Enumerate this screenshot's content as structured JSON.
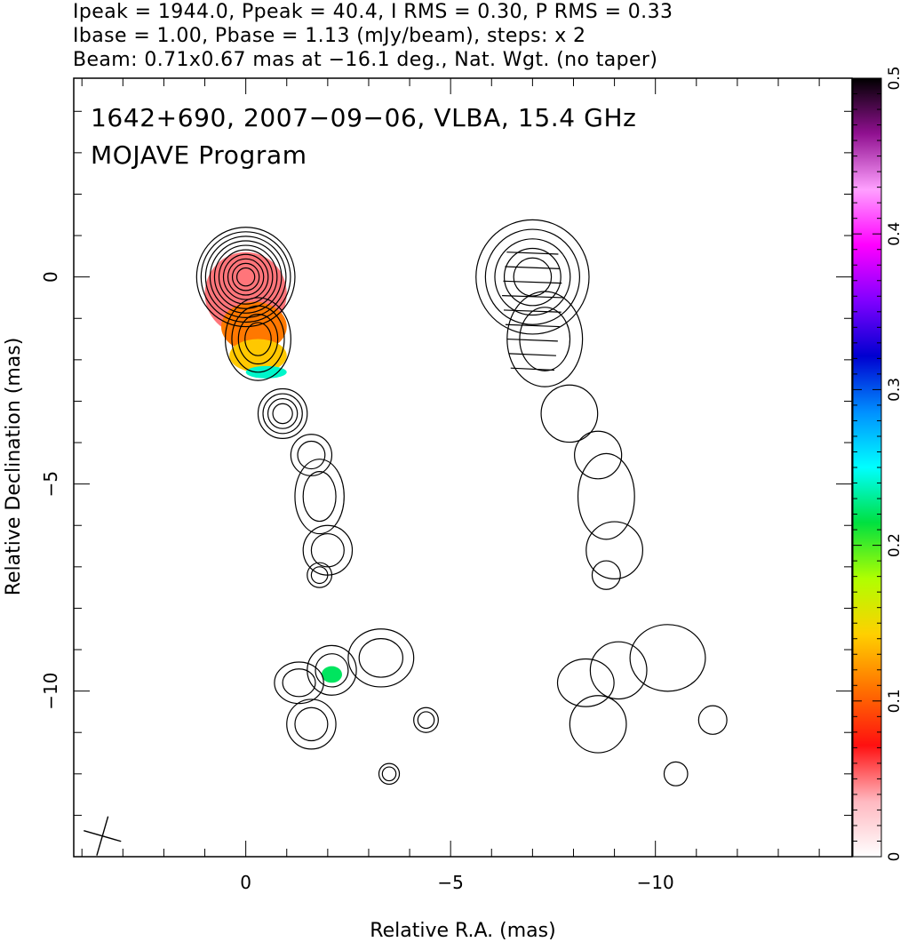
{
  "header": {
    "line1": "Ipeak = 1944.0, Ppeak = 40.4, I RMS = 0.30, P RMS = 0.33",
    "line2": "Ibase = 1.00, Pbase = 1.13 (mJy/beam), steps: x 2",
    "line3": "Beam: 0.71x0.67 mas at −16.1 deg., Nat. Wgt. (no taper)"
  },
  "chart_data": {
    "type": "heatmap",
    "title": "1642+690, 2007−09−06, VLBA, 15.4 GHz",
    "subtitle": "MOJAVE Program",
    "xlabel": "Relative R.A. (mas)",
    "ylabel": "Relative Declination (mas)",
    "xlim": [
      4.2,
      -14.8
    ],
    "ylim": [
      -14.0,
      4.8
    ],
    "x_ticks": [
      {
        "v": 0,
        "label": "0"
      },
      {
        "v": -5,
        "label": "−5"
      },
      {
        "v": -10,
        "label": "−10"
      }
    ],
    "y_ticks": [
      {
        "v": 0,
        "label": "0"
      },
      {
        "v": -5,
        "label": "−5"
      },
      {
        "v": -10,
        "label": "−10"
      }
    ],
    "x_minor_step": 1,
    "y_minor_step": 1,
    "colorbar": {
      "min": 0,
      "max": 0.5,
      "ticks": [
        {
          "v": 0,
          "label": "0"
        },
        {
          "v": 0.1,
          "label": "0.1"
        },
        {
          "v": 0.2,
          "label": "0.2"
        },
        {
          "v": 0.3,
          "label": "0.3"
        },
        {
          "v": 0.4,
          "label": "0.4"
        },
        {
          "v": 0.5,
          "label": "0.5"
        }
      ],
      "colors": [
        "#ffffff",
        "#ffb8c0",
        "#ff1010",
        "#ff7000",
        "#ffd000",
        "#b0ff00",
        "#00e040",
        "#00ffff",
        "#0090ff",
        "#0000d0",
        "#8000ff",
        "#ff00ff",
        "#ffa0ff",
        "#901090",
        "#000000"
      ]
    },
    "beam": {
      "major_mas": 0.71,
      "minor_mas": 0.67,
      "pa_deg": -16.1
    },
    "left_panel": {
      "core": {
        "x": 0,
        "y": 0
      },
      "stokes_I_contours": [
        {
          "x": 0.0,
          "y": 0.0,
          "rx": 1.2,
          "ry": 1.2
        },
        {
          "x": -0.3,
          "y": -1.5,
          "rx": 0.8,
          "ry": 1.0
        },
        {
          "x": -0.9,
          "y": -3.3,
          "rx": 0.6,
          "ry": 0.6
        },
        {
          "x": -1.6,
          "y": -4.3,
          "rx": 0.5,
          "ry": 0.5
        },
        {
          "x": -1.8,
          "y": -5.3,
          "rx": 0.6,
          "ry": 0.9
        },
        {
          "x": -2.0,
          "y": -6.6,
          "rx": 0.6,
          "ry": 0.6
        },
        {
          "x": -1.8,
          "y": -7.2,
          "rx": 0.3,
          "ry": 0.3
        },
        {
          "x": -2.1,
          "y": -9.5,
          "rx": 0.6,
          "ry": 0.6
        },
        {
          "x": -1.3,
          "y": -9.8,
          "rx": 0.6,
          "ry": 0.5
        },
        {
          "x": -3.3,
          "y": -9.2,
          "rx": 0.8,
          "ry": 0.7
        },
        {
          "x": -1.6,
          "y": -10.8,
          "rx": 0.6,
          "ry": 0.6
        },
        {
          "x": -4.4,
          "y": -10.7,
          "rx": 0.3,
          "ry": 0.3
        },
        {
          "x": -3.5,
          "y": -12.0,
          "rx": 0.25,
          "ry": 0.25
        }
      ],
      "frac_pol_patches": [
        {
          "x": 0.0,
          "y": -0.4,
          "rx": 1.0,
          "ry": 1.0,
          "value": 0.05
        },
        {
          "x": -0.2,
          "y": -1.2,
          "rx": 0.8,
          "ry": 0.6,
          "value": 0.11
        },
        {
          "x": -0.3,
          "y": -1.9,
          "rx": 0.7,
          "ry": 0.4,
          "value": 0.14
        },
        {
          "x": -0.5,
          "y": -2.3,
          "rx": 0.5,
          "ry": 0.15,
          "value": 0.24
        },
        {
          "x": -2.1,
          "y": -9.6,
          "rx": 0.25,
          "ry": 0.2,
          "value": 0.22
        }
      ]
    },
    "right_panel": {
      "core": {
        "x": -7.0,
        "y": 0
      }
    }
  }
}
